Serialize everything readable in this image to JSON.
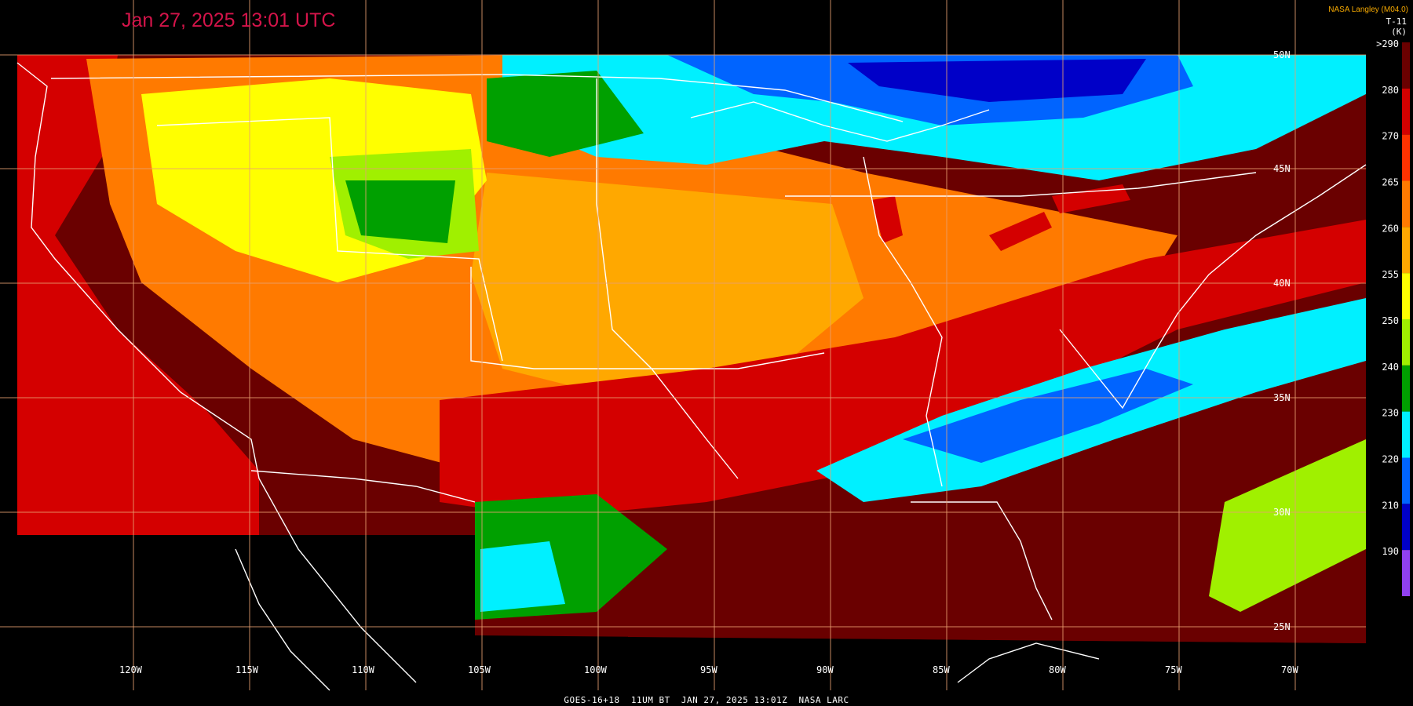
{
  "header": {
    "timestamp": "Jan 27, 2025 13:01 UTC",
    "credit": "NASA Langley (M04.0)"
  },
  "colorbar": {
    "title_line1": "T-11",
    "title_line2": "(K)",
    "labels": [
      ">290",
      "280",
      "270",
      "265",
      "260",
      "255",
      "250",
      "240",
      "230",
      "220",
      "210",
      "190"
    ],
    "colors": [
      "#6a0000",
      "#d40000",
      "#ff3200",
      "#ff7a00",
      "#ffa800",
      "#ffff00",
      "#a0f000",
      "#00a000",
      "#00f0ff",
      "#0064ff",
      "#0000c8",
      "#9040f0"
    ]
  },
  "map": {
    "longitude_labels": [
      "120W",
      "115W",
      "110W",
      "105W",
      "100W",
      "95W",
      "90W",
      "85W",
      "80W",
      "75W",
      "70W"
    ],
    "latitude_labels": [
      "50N",
      "45N",
      "40N",
      "35N",
      "30N",
      "25N"
    ],
    "gridline_color": "#e8a070",
    "coastline_color": "#ffffff"
  },
  "footer": {
    "caption": "GOES-16+18  11UM BT  JAN 27, 2025 13:01Z  NASA LARC"
  }
}
